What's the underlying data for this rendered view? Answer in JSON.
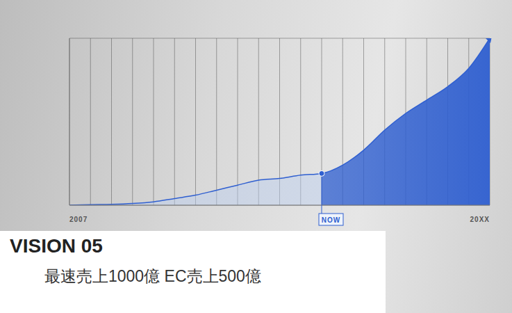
{
  "chart_data": {
    "type": "area",
    "title": "VISION 05",
    "subtitle": "最速売上1000億 EC売上500億",
    "categories": [
      "2007",
      null,
      null,
      null,
      null,
      null,
      null,
      null,
      null,
      null,
      null,
      null,
      "NOW",
      null,
      null,
      null,
      null,
      null,
      null,
      null,
      "20XX"
    ],
    "values": [
      0,
      0.3,
      0.5,
      1,
      2,
      4,
      6,
      9,
      12,
      15,
      16,
      18,
      19,
      24,
      33,
      45,
      55,
      63,
      71,
      82,
      100
    ],
    "color": "#2f5fd0",
    "ylim": [
      0,
      100
    ],
    "yticks": [
      0,
      10,
      20,
      30,
      40,
      50,
      60,
      70,
      80,
      90,
      100
    ],
    "grid": true,
    "tick_labels": "x"
  }
}
